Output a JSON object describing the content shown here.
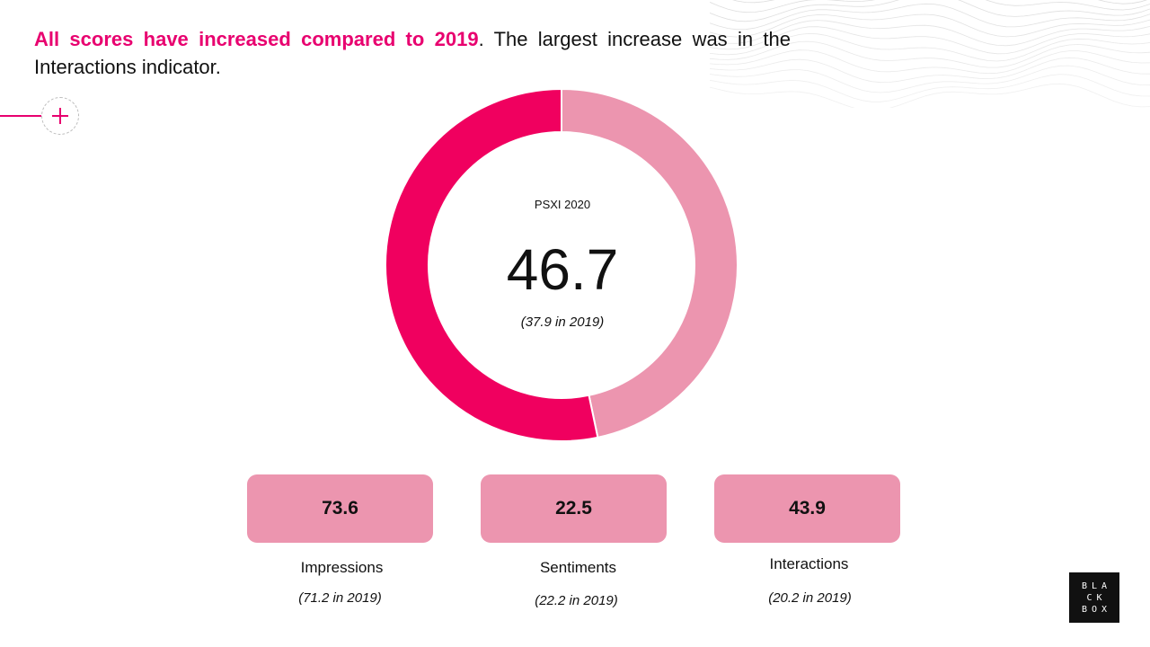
{
  "headline": {
    "highlight": "All scores have increased compared to 2019",
    "rest": ". The largest increase was in the Interactions indicator."
  },
  "colors": {
    "accent": "#e8006f",
    "dark_segment": "#f0005f",
    "light_segment": "#ec95af",
    "card": "#ec95af"
  },
  "icons": {
    "expand": "plus-icon",
    "decoration": "wave-lines",
    "logo": "blackbox-logo"
  },
  "chart_data": {
    "type": "pie",
    "style": "donut",
    "title": "PSXI 2020",
    "center_value": "46.7",
    "center_note": "(37.9 in 2019)",
    "slices": [
      {
        "value": 46.7,
        "color": "#ec95af"
      },
      {
        "value": 53.3,
        "color": "#f0005f"
      }
    ]
  },
  "indicators": [
    {
      "value": "73.6",
      "name": "Impressions",
      "prev": "(71.2 in 2019)"
    },
    {
      "value": "22.5",
      "name": "Sentiments",
      "prev": "(22.2 in 2019)"
    },
    {
      "value": "43.9",
      "name": "Interactions",
      "prev": "(20.2 in 2019)"
    }
  ],
  "logo": {
    "lines": [
      "BLA",
      "CK",
      "BOX"
    ]
  }
}
